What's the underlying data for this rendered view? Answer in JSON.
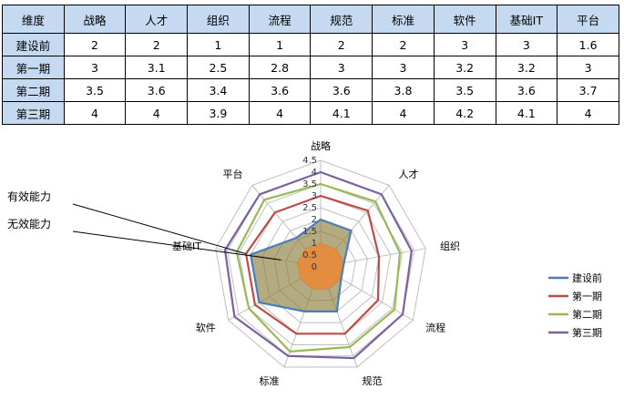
{
  "table": {
    "header": [
      "维度",
      "战略",
      "人才",
      "组织",
      "流程",
      "规范",
      "标准",
      "软件",
      "基础IT",
      "平台"
    ],
    "rows": [
      {
        "label": "建设前",
        "values": [
          "2",
          "2",
          "1",
          "1",
          "2",
          "2",
          "3",
          "3",
          "1.6"
        ]
      },
      {
        "label": "第一期",
        "values": [
          "3",
          "3.1",
          "2.5",
          "2.8",
          "3",
          "3",
          "3.2",
          "3.2",
          "3"
        ]
      },
      {
        "label": "第二期",
        "values": [
          "3.5",
          "3.6",
          "3.4",
          "3.6",
          "3.6",
          "3.8",
          "3.5",
          "3.6",
          "3.7"
        ]
      },
      {
        "label": "第三期",
        "values": [
          "4",
          "4",
          "3.9",
          "4",
          "4.1",
          "4",
          "4.2",
          "4.1",
          "4"
        ]
      }
    ]
  },
  "chart_data": {
    "type": "radar",
    "categories": [
      "战略",
      "人才",
      "组织",
      "流程",
      "规范",
      "标准",
      "软件",
      "基础IT",
      "平台"
    ],
    "rlim": [
      0,
      4.5
    ],
    "ticks": [
      "0",
      "0.5",
      "1",
      "1.5",
      "2",
      "2.5",
      "3",
      "3.5",
      "4",
      "4.5"
    ],
    "series": [
      {
        "name": "建设前",
        "color": "#4a7ebb",
        "values": [
          2,
          2,
          1,
          1,
          2,
          2,
          3,
          3,
          1.6
        ]
      },
      {
        "name": "第一期",
        "color": "#be4b48",
        "values": [
          3,
          3.1,
          2.5,
          2.8,
          3,
          3,
          3.2,
          3.2,
          3
        ]
      },
      {
        "name": "第二期",
        "color": "#98b954",
        "values": [
          3.5,
          3.6,
          3.4,
          3.6,
          3.6,
          3.8,
          3.5,
          3.6,
          3.7
        ]
      },
      {
        "name": "第三期",
        "color": "#7d60a0",
        "values": [
          4,
          4,
          3.9,
          4,
          4.1,
          4,
          4.2,
          4.1,
          4
        ]
      }
    ],
    "annotations": [
      {
        "text": "有效能力",
        "value": 3,
        "axis": "基础IT"
      },
      {
        "text": "无效能力",
        "value": 0.5,
        "axis": "基础IT"
      }
    ],
    "effective_fill": "#8c7e3c",
    "ineffective_fill": "#e8893a",
    "legend": "right",
    "grid": true
  }
}
